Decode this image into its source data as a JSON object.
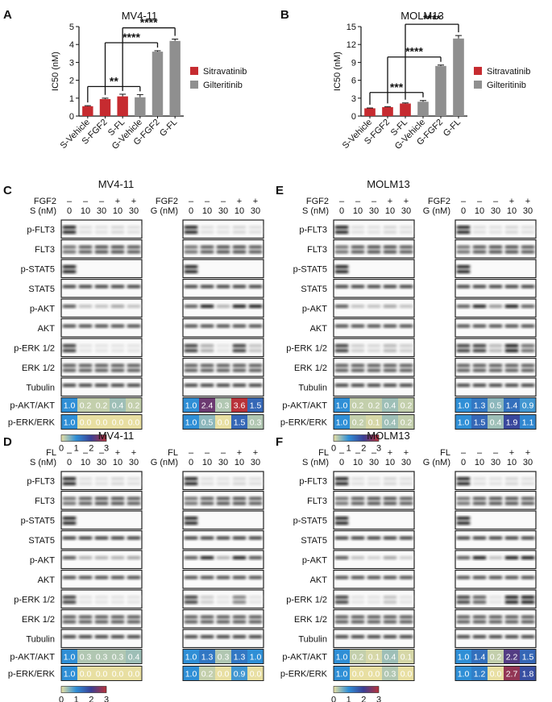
{
  "panels": {
    "A": {
      "letter": "A",
      "title": "MV4-11"
    },
    "B": {
      "letter": "B",
      "title": "MOLM13"
    },
    "C": {
      "letter": "C",
      "title": "MV4-11"
    },
    "D": {
      "letter": "D",
      "title": "MV4-11"
    },
    "E": {
      "letter": "E",
      "title": "MOLM13"
    },
    "F": {
      "letter": "F",
      "title": "MOLM13"
    }
  },
  "legend": {
    "sitravatinib": "Sitravatinib",
    "gilteritinib": "Gilteritinib"
  },
  "colors": {
    "sitravatinib": "#c62b30",
    "gilteritinib": "#8f8f8f"
  },
  "significance_marks": [
    "**",
    "****",
    "****"
  ],
  "significance_marks_B": [
    "***",
    "****",
    "****"
  ],
  "chart_data": [
    {
      "type": "bar",
      "title": "MV4-11",
      "ylabel": "IC50 (nM)",
      "categories": [
        "S-Vehicle",
        "S-FGF2",
        "S-FL",
        "G-Vehicle",
        "G-FGF2",
        "G-FL"
      ],
      "values": [
        0.55,
        0.95,
        1.1,
        1.05,
        3.6,
        4.2
      ],
      "errors": [
        0.03,
        0.05,
        0.12,
        0.15,
        0.05,
        0.1
      ],
      "series_of_category": [
        "Sitravatinib",
        "Sitravatinib",
        "Sitravatinib",
        "Gilteritinib",
        "Gilteritinib",
        "Gilteritinib"
      ],
      "ylim": [
        0,
        5
      ],
      "yticks": [
        0,
        1,
        2,
        3,
        4,
        5
      ],
      "legend_position": "right"
    },
    {
      "type": "bar",
      "title": "MOLM13",
      "ylabel": "IC50 (nM)",
      "categories": [
        "S-Vehicle",
        "S-FGF2",
        "S-FL",
        "G-Vehicle",
        "G-FGF2",
        "G-FL"
      ],
      "values": [
        1.3,
        1.5,
        2.1,
        2.4,
        8.4,
        13.0
      ],
      "errors": [
        0.05,
        0.08,
        0.1,
        0.2,
        0.15,
        0.5
      ],
      "series_of_category": [
        "Sitravatinib",
        "Sitravatinib",
        "Sitravatinib",
        "Gilteritinib",
        "Gilteritinib",
        "Gilteritinib"
      ],
      "ylim": [
        0,
        15
      ],
      "yticks": [
        0,
        3,
        6,
        9,
        12,
        15
      ],
      "legend_position": "right"
    }
  ],
  "blot_labels": [
    "p-FLT3",
    "FLT3",
    "p-STAT5",
    "STAT5",
    "p-AKT",
    "AKT",
    "p-ERK 1/2",
    "ERK 1/2",
    "Tubulin"
  ],
  "ratio_labels": [
    "p-AKT/AKT",
    "p-ERK/ERK"
  ],
  "colorbar_ticks": [
    "0",
    "1",
    "2",
    "3"
  ],
  "dose_values": [
    "0",
    "10",
    "30",
    "10",
    "30"
  ],
  "ligand_signs": [
    "–",
    "–",
    "–",
    "+",
    "+"
  ],
  "blots": {
    "C": {
      "ligand": "FGF2",
      "left": {
        "drug": "S (nM)",
        "akt": [
          "1.0",
          "0.2",
          "0.2",
          "0.4",
          "0.2"
        ],
        "erk": [
          "1.0",
          "0.0",
          "0.0",
          "0.0",
          "0.0"
        ]
      },
      "right": {
        "drug": "G (nM)",
        "akt": [
          "1.0",
          "2.4",
          "0.3",
          "3.6",
          "1.5"
        ],
        "erk": [
          "1.0",
          "0.5",
          "0.0",
          "1.5",
          "0.3"
        ]
      }
    },
    "D": {
      "ligand": "FL",
      "left": {
        "drug": "S (nM)",
        "akt": [
          "1.0",
          "0.3",
          "0.3",
          "0.3",
          "0.4"
        ],
        "erk": [
          "1.0",
          "0.0",
          "0.0",
          "0.0",
          "0.0"
        ]
      },
      "right": {
        "drug": "G (nM)",
        "akt": [
          "1.0",
          "1.3",
          "0.3",
          "1.3",
          "1.0"
        ],
        "erk": [
          "1.0",
          "0.2",
          "0.0",
          "0.9",
          "0.0"
        ]
      }
    },
    "E": {
      "ligand": "FGF2",
      "left": {
        "drug": "S (nM)",
        "akt": [
          "1.0",
          "0.2",
          "0.2",
          "0.4",
          "0.2"
        ],
        "erk": [
          "1.0",
          "0.2",
          "0.1",
          "0.4",
          "0.2"
        ]
      },
      "right": {
        "drug": "G (nM)",
        "akt": [
          "1.0",
          "1.3",
          "0.5",
          "1.4",
          "0.9"
        ],
        "erk": [
          "1.0",
          "1.5",
          "0.4",
          "1.9",
          "1.1"
        ]
      }
    },
    "F": {
      "ligand": "FL",
      "left": {
        "drug": "S (nM)",
        "akt": [
          "1.0",
          "0.2",
          "0.1",
          "0.4",
          "0.1"
        ],
        "erk": [
          "1.0",
          "0.0",
          "0.0",
          "0.3",
          "0.0"
        ]
      },
      "right": {
        "drug": "G (nM)",
        "akt": [
          "1.0",
          "1.4",
          "0.2",
          "2.2",
          "1.5"
        ],
        "erk": [
          "1.0",
          "1.2",
          "0.0",
          "2.7",
          "1.8"
        ]
      }
    }
  }
}
